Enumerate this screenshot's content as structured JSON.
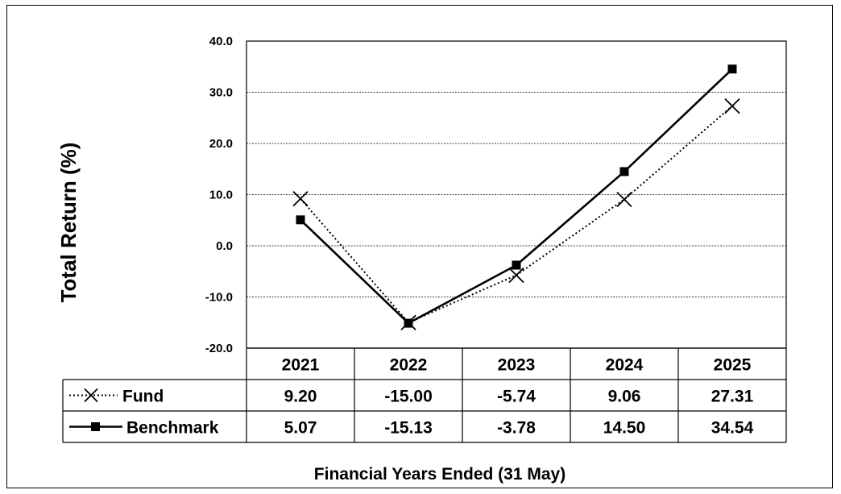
{
  "chart_data": {
    "type": "line",
    "title": "",
    "ylabel": "Total Return (%)",
    "xlabel": "Financial  Years Ended (31 May)",
    "categories": [
      "2021",
      "2022",
      "2023",
      "2024",
      "2025"
    ],
    "ylim": [
      -20,
      40
    ],
    "yticks": [
      -20,
      -10,
      0,
      10,
      20,
      30,
      40
    ],
    "ytick_labels": [
      "-20.0",
      "-10.0",
      "0.0",
      "10.0",
      "20.0",
      "30.0",
      "40.0"
    ],
    "grid": "horizontal dashed",
    "legend": "data table below chart",
    "series": [
      {
        "name": "Fund",
        "values": [
          9.2,
          -15.0,
          -5.74,
          9.06,
          27.31
        ],
        "labels": [
          "9.20",
          "-15.00",
          "-5.74",
          "9.06",
          "27.31"
        ],
        "style": "dotted",
        "marker": "x",
        "color": "#000000"
      },
      {
        "name": "Benchmark",
        "values": [
          5.07,
          -15.13,
          -3.78,
          14.5,
          34.54
        ],
        "labels": [
          "5.07",
          "-15.13",
          "-3.78",
          "14.50",
          "34.54"
        ],
        "style": "solid",
        "marker": "square",
        "color": "#000000"
      }
    ]
  }
}
